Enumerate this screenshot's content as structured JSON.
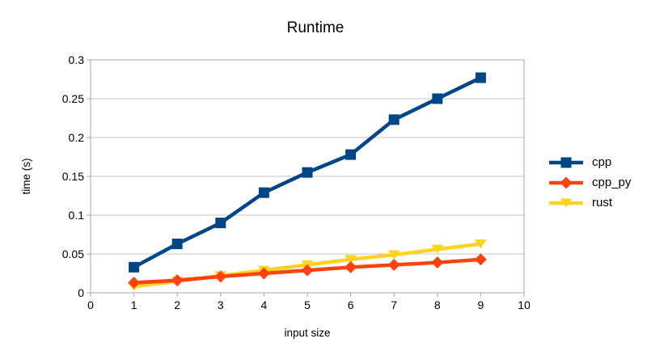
{
  "chart_data": {
    "type": "line",
    "title": "Runtime",
    "xlabel": "input size",
    "ylabel": "time (s)",
    "xlim": [
      0,
      10
    ],
    "ylim": [
      0,
      0.3
    ],
    "x_ticks": [
      0,
      1,
      2,
      3,
      4,
      5,
      6,
      7,
      8,
      9,
      10
    ],
    "y_ticks": [
      0,
      0.05,
      0.1,
      0.15,
      0.2,
      0.25,
      0.3
    ],
    "y_tick_labels": [
      "0",
      "0.05",
      "0.1",
      "0.15",
      "0.2",
      "0.25",
      "0.3"
    ],
    "grid": "horizontal-only",
    "legend_position": "right",
    "background_color": "#ffffff",
    "grid_color": "#c6c6c6",
    "axis_color": "#b3b3b3",
    "x": [
      1,
      2,
      3,
      4,
      5,
      6,
      7,
      8,
      9
    ],
    "series": [
      {
        "name": "cpp",
        "color": "#004586",
        "marker": "square",
        "values": [
          0.033,
          0.063,
          0.09,
          0.129,
          0.155,
          0.178,
          0.223,
          0.25,
          0.277
        ]
      },
      {
        "name": "cpp_py",
        "color": "#FF420E",
        "marker": "diamond",
        "values": [
          0.013,
          0.016,
          0.021,
          0.025,
          0.029,
          0.033,
          0.036,
          0.039,
          0.043
        ]
      },
      {
        "name": "rust",
        "color": "#FFD320",
        "marker": "triangle-down",
        "values": [
          0.008,
          0.015,
          0.022,
          0.029,
          0.036,
          0.043,
          0.049,
          0.056,
          0.063
        ]
      }
    ]
  }
}
